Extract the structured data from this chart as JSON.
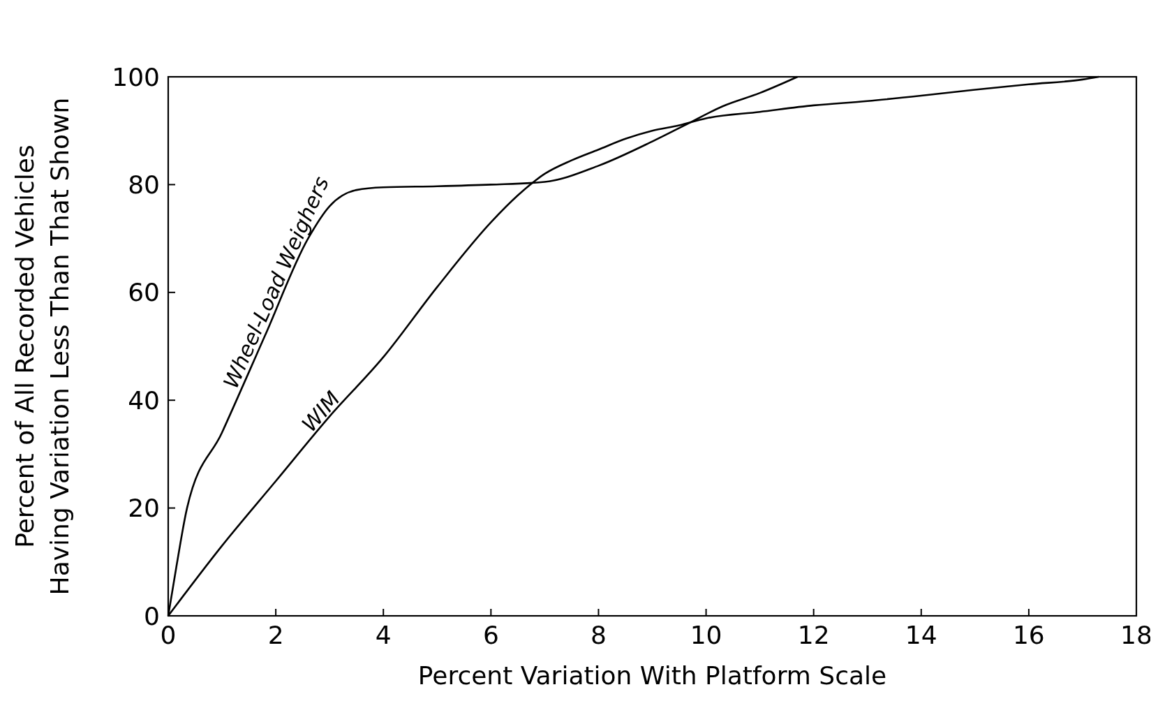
{
  "chart_data": {
    "type": "line",
    "xlabel": "Percent Variation With Platform Scale",
    "ylabel": "Percent of All Recorded Vehicles\nHaving Variation Less Than That Shown",
    "xlim": [
      0,
      18
    ],
    "ylim": [
      0,
      100
    ],
    "xticks": [
      0,
      2,
      4,
      6,
      8,
      10,
      12,
      14,
      16,
      18
    ],
    "yticks": [
      0,
      20,
      40,
      60,
      80,
      100
    ],
    "grid": false,
    "marker": "none",
    "line_style": "solid",
    "series": [
      {
        "name": "Wheel-Load Weighers",
        "color": "#000000",
        "x": [
          0,
          0.15,
          0.35,
          1.0,
          1.8,
          2.6,
          3.0,
          3.5,
          4,
          5,
          6,
          7,
          8,
          9,
          9.7,
          10.3,
          11,
          11.7
        ],
        "values": [
          0,
          9,
          20,
          34,
          52,
          70,
          76,
          79,
          79.5,
          79.7,
          80,
          80.5,
          83.5,
          88,
          91.5,
          94.5,
          97,
          100
        ]
      },
      {
        "name": "WIM",
        "color": "#000000",
        "x": [
          0,
          1,
          2,
          3,
          4,
          5,
          6,
          6.5,
          7,
          7.5,
          8,
          8.5,
          9,
          9.5,
          10,
          11,
          12,
          13,
          14,
          15,
          16,
          17,
          17.3
        ],
        "values": [
          0,
          13,
          25,
          37,
          48,
          61,
          73,
          78,
          82,
          84.5,
          86.5,
          88.5,
          90,
          91,
          92.3,
          93.5,
          94.7,
          95.5,
          96.5,
          97.6,
          98.6,
          99.5,
          100
        ]
      }
    ]
  }
}
